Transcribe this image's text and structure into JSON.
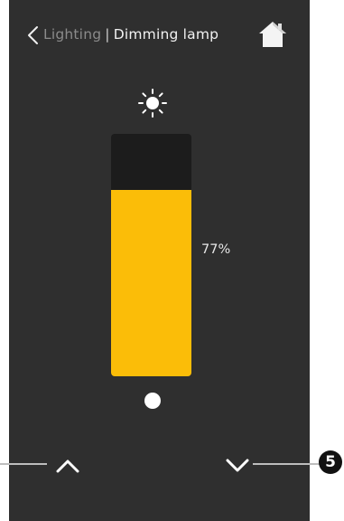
{
  "header": {
    "parent_label": "Lighting",
    "separator": "|",
    "title": "Dimming lamp",
    "back_icon": "chevron-left-icon",
    "home_icon": "home-icon"
  },
  "dimmer": {
    "level_percent": 77,
    "level_label": "77%",
    "top_icon": "sun-icon",
    "bottom_icon": "dot-icon",
    "fill_color": "#fbbd08",
    "track_color": "#1c1c1c"
  },
  "controls": {
    "increase_icon": "chevron-up-icon",
    "decrease_icon": "chevron-down-icon"
  },
  "callout": {
    "number": "5"
  },
  "colors": {
    "background": "#2f2f2f",
    "accent": "#fbbd08"
  }
}
